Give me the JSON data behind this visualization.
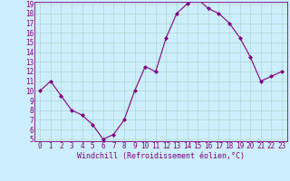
{
  "x": [
    0,
    1,
    2,
    3,
    4,
    5,
    6,
    7,
    8,
    9,
    10,
    11,
    12,
    13,
    14,
    15,
    16,
    17,
    18,
    19,
    20,
    21,
    22,
    23
  ],
  "y": [
    10,
    11,
    9.5,
    8,
    7.5,
    6.5,
    5,
    5.5,
    7,
    10,
    12.5,
    12,
    15.5,
    18,
    19,
    19.5,
    18.5,
    18,
    17,
    15.5,
    13.5,
    11,
    11.5,
    12
  ],
  "line_color": "#800080",
  "marker": "D",
  "marker_size": 2,
  "bg_color": "#cceeff",
  "grid_color": "#aaddcc",
  "xlabel": "Windchill (Refroidissement éolien,°C)",
  "xlabel_color": "#800080",
  "tick_color": "#800080",
  "ylim": [
    5,
    19
  ],
  "xlim": [
    -0.5,
    23.5
  ],
  "yticks": [
    5,
    6,
    7,
    8,
    9,
    10,
    11,
    12,
    13,
    14,
    15,
    16,
    17,
    18,
    19
  ],
  "xticks": [
    0,
    1,
    2,
    3,
    4,
    5,
    6,
    7,
    8,
    9,
    10,
    11,
    12,
    13,
    14,
    15,
    16,
    17,
    18,
    19,
    20,
    21,
    22,
    23
  ],
  "tick_font_size": 5.5,
  "label_font_size": 6.0,
  "line_width": 0.8
}
